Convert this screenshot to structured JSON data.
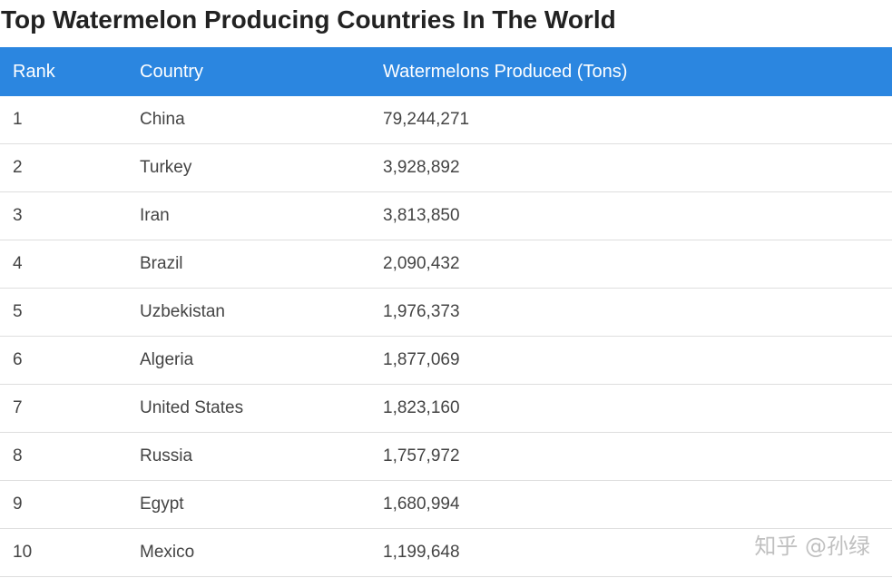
{
  "title": "Top Watermelon Producing Countries In The World",
  "colors": {
    "header_background": "#2b86e0",
    "header_text": "#ffffff",
    "row_divider": "#dedede"
  },
  "table": {
    "columns": [
      "Rank",
      "Country",
      "Watermelons Produced (Tons)"
    ],
    "rows": [
      [
        "1",
        "China",
        "79,244,271"
      ],
      [
        "2",
        "Turkey",
        "3,928,892"
      ],
      [
        "3",
        "Iran",
        "3,813,850"
      ],
      [
        "4",
        "Brazil",
        "2,090,432"
      ],
      [
        "5",
        "Uzbekistan",
        "1,976,373"
      ],
      [
        "6",
        "Algeria",
        "1,877,069"
      ],
      [
        "7",
        "United States",
        "1,823,160"
      ],
      [
        "8",
        "Russia",
        "1,757,972"
      ],
      [
        "9",
        "Egypt",
        "1,680,994"
      ],
      [
        "10",
        "Mexico",
        "1,199,648"
      ]
    ]
  },
  "watermark": "知乎 @孙绿"
}
